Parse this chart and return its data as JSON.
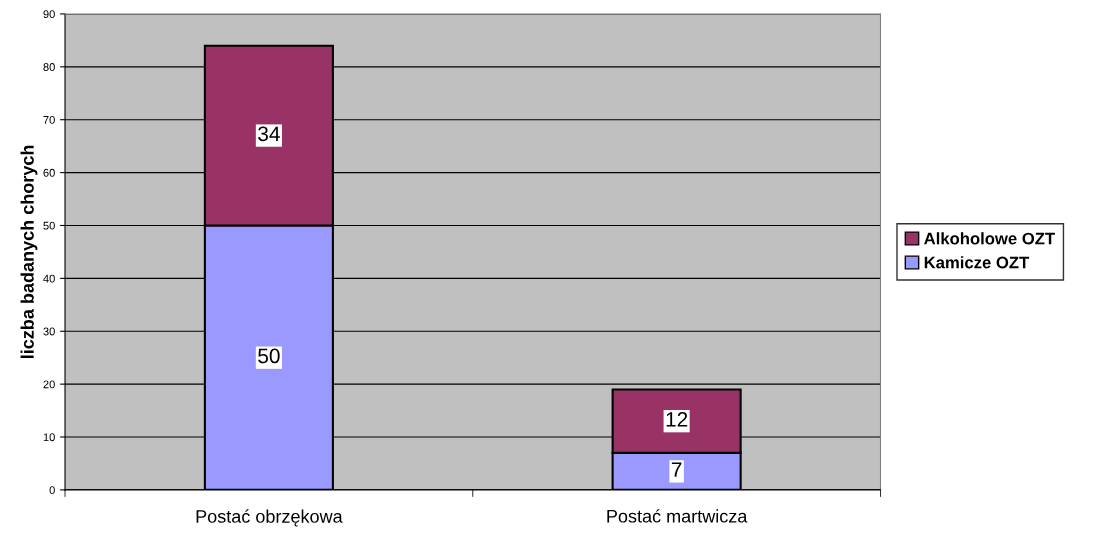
{
  "chart_data": {
    "type": "bar",
    "stacked": true,
    "ylabel": "liczba badanych chorych",
    "categories": [
      "Postać obrzękowa",
      "Postać martwicza"
    ],
    "series": [
      {
        "name": "Kamicze OZT",
        "color": "#9999ff",
        "values": [
          50,
          7
        ]
      },
      {
        "name": "Alkoholowe OZT",
        "color": "#993366",
        "values": [
          34,
          12
        ]
      }
    ],
    "ylim": [
      0,
      90
    ],
    "yticks": [
      0,
      10,
      20,
      30,
      40,
      50,
      60,
      70,
      80,
      90
    ],
    "grid": "y",
    "legend": "right",
    "data_labels": true
  }
}
